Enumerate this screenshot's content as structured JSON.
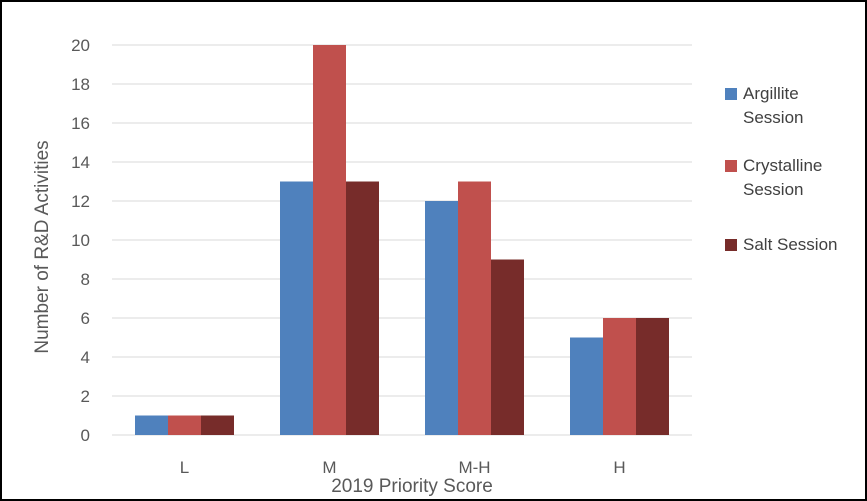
{
  "chart_data": {
    "type": "bar",
    "categories": [
      "L",
      "M",
      "M-H",
      "H"
    ],
    "series": [
      {
        "name": "Argillite Session",
        "legend_lines": [
          "Argillite",
          "Session"
        ],
        "values": [
          1,
          13,
          12,
          5
        ],
        "color": "#4f81bd"
      },
      {
        "name": "Crystalline Session",
        "legend_lines": [
          "Crystalline",
          "Session"
        ],
        "values": [
          1,
          20,
          13,
          6
        ],
        "color": "#c0504d"
      },
      {
        "name": "Salt Session",
        "legend_lines": [
          "Salt Session"
        ],
        "values": [
          1,
          13,
          9,
          6
        ],
        "color": "#772c2a"
      }
    ],
    "xlabel": "2019 Priority Score",
    "ylabel": "Number of R&D Activities",
    "ylim": [
      0,
      20
    ],
    "yticks": [
      0,
      2,
      4,
      6,
      8,
      10,
      12,
      14,
      16,
      18,
      20
    ],
    "grid": true,
    "legend_position": "right"
  }
}
